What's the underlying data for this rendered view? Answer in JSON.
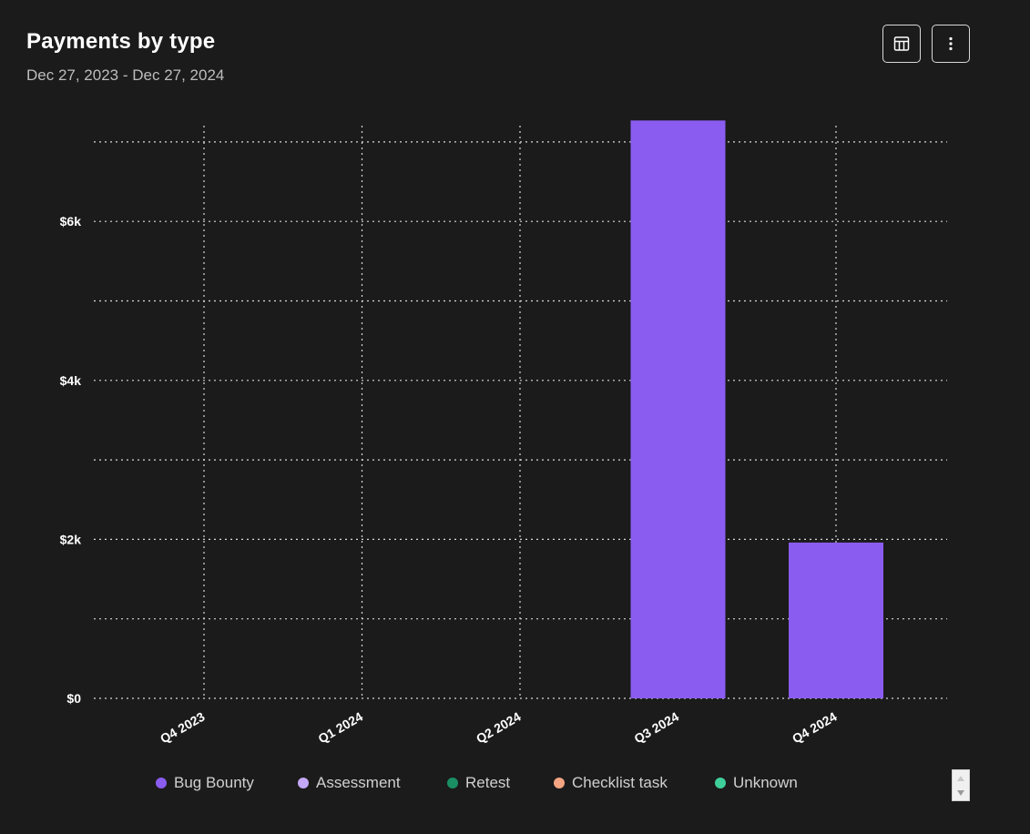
{
  "header": {
    "title": "Payments by type",
    "date_range": "Dec 27, 2023 - Dec 27, 2024",
    "layout_icon": "table-layout-icon",
    "more_icon": "vertical-dots-icon"
  },
  "colors": {
    "background": "#1b1b1b",
    "grid": "#d9d9d9",
    "bar": "#8b5cf0"
  },
  "chart_data": {
    "type": "bar",
    "title": "Payments by type",
    "subtitle": "Dec 27, 2023 - Dec 27, 2024",
    "xlabel": "",
    "ylabel": "",
    "categories": [
      "Q4 2023",
      "Q1 2024",
      "Q2 2024",
      "Q3 2024",
      "Q4 2024"
    ],
    "series": [
      {
        "name": "Bug Bounty",
        "color": "#8b5cf0",
        "values": [
          0,
          0,
          0,
          7270,
          1960
        ]
      },
      {
        "name": "Assessment",
        "color": "#c4a8f5",
        "values": [
          0,
          0,
          0,
          0,
          0
        ]
      },
      {
        "name": "Retest",
        "color": "#1a8f63",
        "values": [
          0,
          0,
          0,
          0,
          0
        ]
      },
      {
        "name": "Checklist task",
        "color": "#f4a582",
        "values": [
          0,
          0,
          0,
          0,
          0
        ]
      },
      {
        "name": "Unknown",
        "color": "#3fcf9b",
        "values": [
          0,
          0,
          0,
          0,
          0
        ]
      }
    ],
    "ylim": [
      0,
      7000
    ],
    "yticks": [
      0,
      2000,
      4000,
      6000
    ],
    "ytick_labels": [
      "$0",
      "$2k",
      "$4k",
      "$6k"
    ],
    "ygrid_step": 1000,
    "grid": true,
    "legend_position": "bottom"
  }
}
